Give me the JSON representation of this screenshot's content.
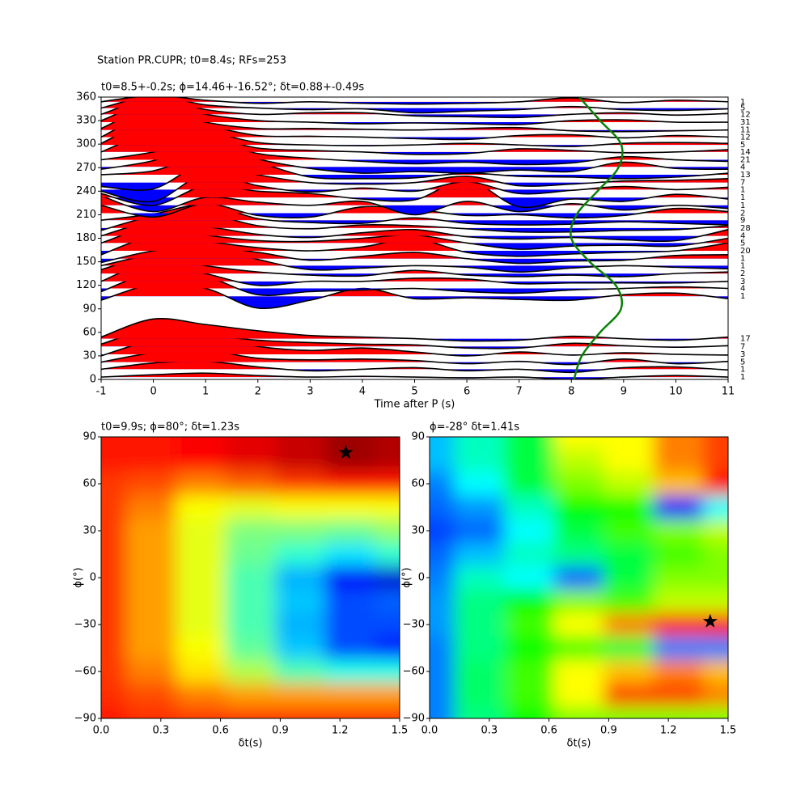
{
  "title": "Station PR.CUPR; t0=8.4s; RFs=253",
  "chart_data": [
    {
      "type": "wiggle",
      "title": "t0=8.5+-0.2s; ϕ=14.46+-16.52°; δt=0.88+-0.49s",
      "xlabel": "Time after P (s)",
      "xlim": [
        -1,
        11
      ],
      "xticks": [
        -1,
        0,
        1,
        2,
        3,
        4,
        5,
        6,
        7,
        8,
        9,
        10,
        11
      ],
      "ylim": [
        0,
        360
      ],
      "yticks": [
        0,
        30,
        60,
        90,
        120,
        150,
        180,
        210,
        240,
        270,
        300,
        330,
        360
      ],
      "positive_color": "#ff0000",
      "negative_color": "#0000ff",
      "line_color": "#000000",
      "x": [
        -1,
        0,
        1,
        2,
        3,
        4,
        5,
        6,
        7,
        8,
        9,
        10,
        11
      ],
      "traces": [
        {
          "baz": 354,
          "count": 1,
          "values": [
            0,
            8,
            2,
            -2,
            0,
            -2,
            -3,
            -2,
            0,
            5,
            -1,
            2,
            0
          ]
        },
        {
          "baz": 346,
          "count": 5,
          "values": [
            0,
            15,
            4,
            0,
            -2,
            -1,
            -6,
            -4,
            -2,
            2,
            -2,
            -3,
            -1
          ]
        },
        {
          "baz": 338,
          "count": 12,
          "values": [
            0,
            20,
            6,
            0,
            2,
            2,
            -2,
            -3,
            -4,
            0,
            2,
            -1,
            1
          ]
        },
        {
          "baz": 328,
          "count": 31,
          "values": [
            2,
            25,
            10,
            2,
            0,
            -2,
            -1,
            -2,
            -3,
            2,
            3,
            0,
            0
          ]
        },
        {
          "baz": 318,
          "count": 11,
          "values": [
            2,
            28,
            10,
            2,
            2,
            1,
            0,
            2,
            3,
            -1,
            -2,
            -1,
            0
          ]
        },
        {
          "baz": 309,
          "count": 12,
          "values": [
            0,
            30,
            15,
            2,
            1,
            0,
            -2,
            -3,
            2,
            3,
            -1,
            2,
            0
          ]
        },
        {
          "baz": 299,
          "count": 5,
          "values": [
            2,
            30,
            18,
            3,
            0,
            -1,
            0,
            2,
            0,
            -2,
            2,
            3,
            2
          ]
        },
        {
          "baz": 290,
          "count": 14,
          "values": [
            0,
            25,
            20,
            5,
            2,
            0,
            -3,
            -2,
            4,
            2,
            -1,
            0,
            3
          ]
        },
        {
          "baz": 280,
          "count": 21,
          "values": [
            0,
            10,
            25,
            8,
            2,
            -2,
            -5,
            -3,
            -6,
            -4,
            4,
            0,
            -2
          ]
        },
        {
          "baz": 271,
          "count": 4,
          "values": [
            -3,
            8,
            30,
            10,
            -2,
            -8,
            -6,
            -8,
            -4,
            -6,
            6,
            -2,
            -3
          ]
        },
        {
          "baz": 261,
          "count": 13,
          "values": [
            0,
            5,
            25,
            15,
            -3,
            -5,
            -4,
            2,
            -2,
            -3,
            -5,
            -3,
            2
          ]
        },
        {
          "baz": 251,
          "count": 7,
          "values": [
            -5,
            -8,
            25,
            10,
            0,
            -2,
            0,
            8,
            -4,
            -2,
            2,
            3,
            5
          ]
        },
        {
          "baz": 242,
          "count": 1,
          "values": [
            -2,
            -15,
            20,
            5,
            -3,
            2,
            -2,
            10,
            -5,
            -1,
            4,
            0,
            3
          ]
        },
        {
          "baz": 232,
          "count": 1,
          "values": [
            5,
            -10,
            15,
            8,
            5,
            -2,
            -3,
            22,
            -12,
            -2,
            -5,
            4,
            -2
          ]
        },
        {
          "baz": 222,
          "count": 1,
          "values": [
            12,
            -8,
            10,
            4,
            0,
            5,
            -12,
            5,
            -8,
            2,
            -6,
            0,
            -4
          ]
        },
        {
          "baz": 212,
          "count": 2,
          "values": [
            10,
            -5,
            12,
            -3,
            -5,
            8,
            5,
            -3,
            -2,
            -6,
            -3,
            6,
            2
          ]
        },
        {
          "baz": 203,
          "count": 9,
          "values": [
            0,
            8,
            20,
            2,
            -3,
            -4,
            3,
            -4,
            -6,
            -5,
            -2,
            -4,
            -6
          ]
        },
        {
          "baz": 193,
          "count": 28,
          "values": [
            -3,
            15,
            18,
            3,
            -1,
            4,
            3,
            -1,
            -5,
            -5,
            -3,
            -2,
            3
          ]
        },
        {
          "baz": 183,
          "count": 4,
          "values": [
            0,
            18,
            12,
            2,
            -2,
            4,
            8,
            -1,
            -4,
            -2,
            -5,
            -6,
            8
          ]
        },
        {
          "baz": 174,
          "count": 5,
          "values": [
            0,
            20,
            10,
            3,
            2,
            6,
            10,
            0,
            -8,
            -4,
            -3,
            -4,
            6
          ]
        },
        {
          "baz": 164,
          "count": 20,
          "values": [
            -5,
            18,
            12,
            4,
            0,
            5,
            15,
            -2,
            -7,
            -4,
            -2,
            0,
            10
          ]
        },
        {
          "baz": 154,
          "count": 1,
          "values": [
            -5,
            10,
            15,
            8,
            -2,
            3,
            8,
            0,
            -6,
            -3,
            -2,
            4,
            5
          ]
        },
        {
          "baz": 145,
          "count": 1,
          "values": [
            0,
            15,
            25,
            8,
            -5,
            -3,
            0,
            -2,
            -8,
            -3,
            0,
            -2,
            -4
          ]
        },
        {
          "baz": 135,
          "count": 2,
          "values": [
            5,
            22,
            10,
            2,
            -2,
            -3,
            4,
            -2,
            -4,
            -2,
            -4,
            0,
            2
          ]
        },
        {
          "baz": 125,
          "count": 3,
          "values": [
            0,
            25,
            10,
            -5,
            0,
            0,
            4,
            3,
            -3,
            -2,
            -2,
            -2,
            0
          ]
        },
        {
          "baz": 116,
          "count": 4,
          "values": [
            -4,
            20,
            15,
            -8,
            -4,
            -2,
            0,
            -4,
            -6,
            -2,
            0,
            2,
            0
          ]
        },
        {
          "baz": 106,
          "count": 1,
          "values": [
            -5,
            15,
            10,
            -15,
            -5,
            10,
            -3,
            -2,
            -4,
            -5,
            2,
            4,
            -3
          ]
        },
        {
          "baz": 52,
          "count": 17,
          "values": [
            2,
            25,
            18,
            10,
            4,
            2,
            0,
            -3,
            -2,
            3,
            0,
            -2,
            2
          ]
        },
        {
          "baz": 42,
          "count": 7,
          "values": [
            3,
            22,
            15,
            8,
            5,
            3,
            2,
            -2,
            -2,
            4,
            1,
            -1,
            1
          ]
        },
        {
          "baz": 32,
          "count": 3,
          "values": [
            -2,
            18,
            22,
            10,
            5,
            8,
            3,
            -2,
            3,
            -1,
            2,
            0,
            -1
          ]
        },
        {
          "baz": 22,
          "count": 5,
          "values": [
            0,
            12,
            15,
            5,
            3,
            4,
            2,
            -2,
            1,
            -3,
            4,
            -2,
            1
          ]
        },
        {
          "baz": 13,
          "count": 1,
          "values": [
            0,
            8,
            10,
            3,
            -2,
            0,
            2,
            -2,
            0,
            -4,
            2,
            3,
            -1
          ]
        },
        {
          "baz": 3,
          "count": 1,
          "values": [
            0,
            3,
            5,
            2,
            0,
            1,
            0,
            -1,
            0,
            -3,
            0,
            2,
            0
          ]
        }
      ],
      "curve": {
        "color": "#0a800a",
        "baz": [
          0,
          30,
          60,
          90,
          120,
          150,
          180,
          210,
          240,
          270,
          300,
          330,
          360
        ],
        "t": [
          8.05,
          8.2,
          8.55,
          8.95,
          8.85,
          8.35,
          8.0,
          8.1,
          8.5,
          8.9,
          8.95,
          8.55,
          8.15
        ]
      }
    },
    {
      "type": "heatmap",
      "title": "t0=9.9s; ϕ=80°; δt=1.23s",
      "xlabel": "δt(s)",
      "ylabel": "ϕ(°)",
      "xlim": [
        0,
        1.5
      ],
      "xticks": [
        {
          "value": 0,
          "label": "0.0"
        },
        0.3,
        0.6,
        0.9,
        1.2,
        1.5
      ],
      "ylim": [
        -90,
        90
      ],
      "yticks": [
        {
          "value": -90,
          "label": "−90"
        },
        {
          "value": -60,
          "label": "−60"
        },
        {
          "value": -30,
          "label": "−30"
        },
        0,
        30,
        60,
        90
      ],
      "colormap": [
        "#00007f",
        "#0000ff",
        "#007fff",
        "#00ffff",
        "#7fff7f",
        "#ffff00",
        "#ff7f00",
        "#ff0000",
        "#7f0000"
      ],
      "dt": [
        0,
        0.25,
        0.5,
        0.75,
        1,
        1.25,
        1.5
      ],
      "phi": [
        90,
        75,
        60,
        45,
        30,
        15,
        0,
        -15,
        -30,
        -45,
        -60,
        -75,
        -90
      ],
      "values": [
        [
          0.85,
          0.85,
          0.88,
          0.9,
          0.93,
          0.97,
          0.95
        ],
        [
          0.85,
          0.85,
          0.87,
          0.9,
          0.93,
          0.97,
          0.95
        ],
        [
          0.82,
          0.8,
          0.75,
          0.78,
          0.82,
          0.85,
          0.85
        ],
        [
          0.82,
          0.75,
          0.62,
          0.6,
          0.62,
          0.62,
          0.62
        ],
        [
          0.82,
          0.72,
          0.6,
          0.5,
          0.5,
          0.48,
          0.52
        ],
        [
          0.82,
          0.72,
          0.6,
          0.48,
          0.42,
          0.35,
          0.42
        ],
        [
          0.82,
          0.72,
          0.6,
          0.45,
          0.3,
          0.12,
          0.08
        ],
        [
          0.82,
          0.72,
          0.6,
          0.45,
          0.32,
          0.2,
          0.22
        ],
        [
          0.82,
          0.72,
          0.6,
          0.45,
          0.3,
          0.2,
          0.2
        ],
        [
          0.82,
          0.72,
          0.62,
          0.47,
          0.32,
          0.2,
          0.15
        ],
        [
          0.82,
          0.75,
          0.65,
          0.55,
          0.45,
          0.4,
          0.4
        ],
        [
          0.83,
          0.8,
          0.75,
          0.72,
          0.72,
          0.72,
          0.72
        ],
        [
          0.85,
          0.83,
          0.82,
          0.82,
          0.82,
          0.82,
          0.82
        ]
      ],
      "star": {
        "dt": 1.23,
        "phi": 80
      }
    },
    {
      "type": "heatmap",
      "title": "ϕ=-28° δt=1.41s",
      "xlabel": "δt(s)",
      "ylabel": "ϕ(°)",
      "xlim": [
        0,
        1.5
      ],
      "xticks": [
        {
          "value": 0,
          "label": "0.0"
        },
        0.3,
        0.6,
        0.9,
        1.2,
        1.5
      ],
      "ylim": [
        -90,
        90
      ],
      "yticks": [
        {
          "value": -90,
          "label": "−90"
        },
        {
          "value": -60,
          "label": "−60"
        },
        {
          "value": -30,
          "label": "−30"
        },
        0,
        30,
        60,
        90
      ],
      "colormap": [
        "#ff0000",
        "#ffff00",
        "#00ff00",
        "#00ffff",
        "#0000ff",
        "#ff00ff"
      ],
      "dt": [
        0,
        0.25,
        0.5,
        0.75,
        1,
        1.25,
        1.5
      ],
      "phi": [
        90,
        75,
        60,
        45,
        30,
        15,
        0,
        -15,
        -30,
        -45,
        -60,
        -75,
        -90
      ],
      "values": [
        [
          0.65,
          0.55,
          0.45,
          0.2,
          0.2,
          0.1,
          0.05
        ],
        [
          0.65,
          0.55,
          0.45,
          0.25,
          0.2,
          0.1,
          0.05
        ],
        [
          0.7,
          0.6,
          0.45,
          0.3,
          0.25,
          0.15,
          0.0
        ],
        [
          0.72,
          0.68,
          0.55,
          0.4,
          0.4,
          0.8,
          0.6
        ],
        [
          0.75,
          0.72,
          0.6,
          0.45,
          0.35,
          0.3,
          0.25
        ],
        [
          0.72,
          0.65,
          0.55,
          0.5,
          0.45,
          0.35,
          0.3
        ],
        [
          0.7,
          0.55,
          0.6,
          0.72,
          0.45,
          0.3,
          0.3
        ],
        [
          0.68,
          0.5,
          0.4,
          0.3,
          0.35,
          0.25,
          0.25
        ],
        [
          0.68,
          0.5,
          0.35,
          0.2,
          0.1,
          0.02,
          0.0
        ],
        [
          0.7,
          0.5,
          0.4,
          0.35,
          0.45,
          0.7,
          0.7
        ],
        [
          0.7,
          0.48,
          0.35,
          0.2,
          0.15,
          0.1,
          0.15
        ],
        [
          0.7,
          0.48,
          0.35,
          0.2,
          0.05,
          0.05,
          0.1
        ],
        [
          0.7,
          0.5,
          0.4,
          0.3,
          0.3,
          0.3,
          0.3
        ]
      ],
      "star": {
        "dt": 1.41,
        "phi": -28
      }
    }
  ]
}
